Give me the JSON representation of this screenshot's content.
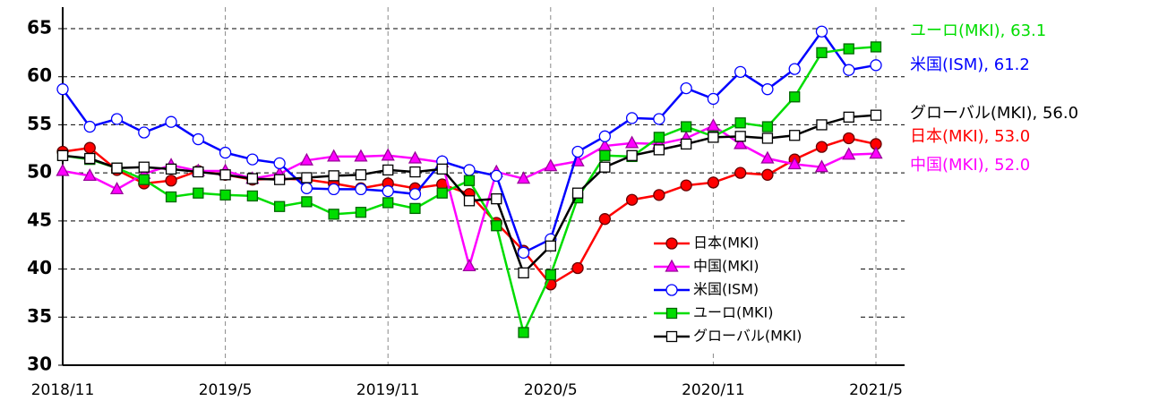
{
  "chart_data": {
    "type": "line",
    "categories": [
      "2018/11",
      null,
      null,
      null,
      null,
      null,
      "2019/5",
      null,
      null,
      null,
      null,
      null,
      "2019/11",
      null,
      null,
      null,
      null,
      null,
      "2020/5",
      null,
      null,
      null,
      null,
      null,
      "2020/11",
      null,
      null,
      null,
      null,
      null,
      "2021/5"
    ],
    "ylim": [
      30,
      65
    ],
    "yticks": [
      30,
      35,
      40,
      45,
      50,
      55,
      60,
      65
    ],
    "grid": true,
    "legend": "lower right",
    "series": [
      {
        "name": "日本(MKI)",
        "color": "#ff0000",
        "marker": "circle",
        "marker_fill": "#ff0000",
        "end_label": "日本(MKI), 53.0",
        "values": [
          52.2,
          52.6,
          50.3,
          48.9,
          49.2,
          50.2,
          49.8,
          49.3,
          49.4,
          49.3,
          48.9,
          48.4,
          48.9,
          48.4,
          48.8,
          47.8,
          44.8,
          41.9,
          38.4,
          40.1,
          45.2,
          47.2,
          47.7,
          48.7,
          49.0,
          50.0,
          49.8,
          51.4,
          52.7,
          53.6,
          53.0
        ]
      },
      {
        "name": "中国(MKI)",
        "color": "#ff00ff",
        "marker": "triangle",
        "marker_fill": "#ff00ff",
        "end_label": "中国(MKI), 52.0",
        "values": [
          50.2,
          49.7,
          48.3,
          49.9,
          50.8,
          50.2,
          50.2,
          49.4,
          49.9,
          51.3,
          51.7,
          51.7,
          51.8,
          51.5,
          51.1,
          40.3,
          50.1,
          49.4,
          50.7,
          51.2,
          52.8,
          53.1,
          53.0,
          53.6,
          54.9,
          53.0,
          51.5,
          50.9,
          50.6,
          51.9,
          52.0
        ]
      },
      {
        "name": "米国(ISM)",
        "color": "#0000ff",
        "marker": "circle",
        "marker_fill": "#ffffff",
        "end_label": "米国(ISM), 61.2",
        "values": [
          58.7,
          54.8,
          55.6,
          54.2,
          55.3,
          53.5,
          52.1,
          51.4,
          51.0,
          48.4,
          48.3,
          48.3,
          48.1,
          47.8,
          51.2,
          50.3,
          49.7,
          41.7,
          43.1,
          52.2,
          53.8,
          55.7,
          55.6,
          58.8,
          57.7,
          60.5,
          58.7,
          60.8,
          64.7,
          60.7,
          61.2
        ]
      },
      {
        "name": "ユーロ(MKI)",
        "color": "#00dd00",
        "marker": "square",
        "marker_fill": "#00dd00",
        "end_label": "ユーロ(MKI), 63.1",
        "values": [
          51.8,
          51.4,
          50.5,
          49.3,
          47.5,
          47.9,
          47.7,
          47.6,
          46.5,
          47.0,
          45.7,
          45.9,
          46.9,
          46.3,
          47.9,
          49.2,
          44.5,
          33.4,
          39.4,
          47.4,
          51.8,
          51.7,
          53.7,
          54.8,
          53.8,
          55.2,
          54.8,
          57.9,
          62.5,
          62.9,
          63.1
        ]
      },
      {
        "name": "グローバル(MKI)",
        "color": "#000000",
        "marker": "square",
        "marker_fill": "#ffffff",
        "end_label": "グローバル(MKI), 56.0",
        "values": [
          51.8,
          51.5,
          50.5,
          50.6,
          50.4,
          50.1,
          49.8,
          49.4,
          49.3,
          49.5,
          49.7,
          49.8,
          50.3,
          50.1,
          50.4,
          47.1,
          47.3,
          39.6,
          42.4,
          47.9,
          50.6,
          51.8,
          52.4,
          53.0,
          53.7,
          53.8,
          53.6,
          53.9,
          55.0,
          55.8,
          56.0
        ]
      }
    ]
  }
}
